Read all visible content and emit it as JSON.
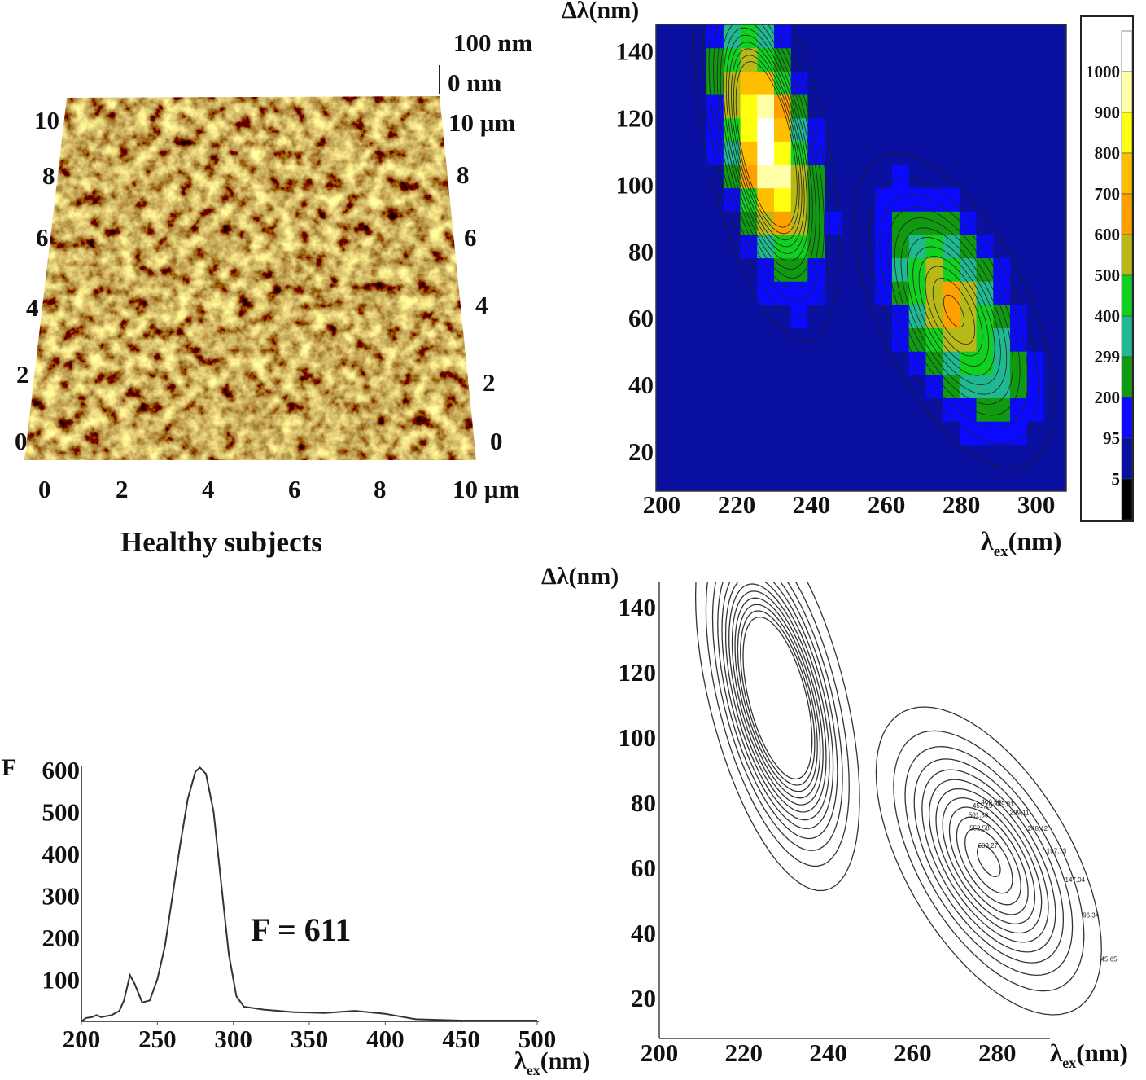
{
  "afm": {
    "caption": "Healthy subjects",
    "z_top": "100 nm",
    "z_bottom": "0 nm",
    "y_ticks": [
      "0",
      "2",
      "4",
      "6",
      "8",
      "10"
    ],
    "y_unit_label": "10 µm",
    "x_ticks": [
      "0",
      "2",
      "4",
      "6",
      "8"
    ],
    "x_last_label": "10 µm",
    "colors": {
      "dark": "#6b3a0a",
      "light": "#c8a030"
    }
  },
  "chart_data": [
    {
      "type": "heatmap",
      "ylabel": "Δλ(nm)",
      "xlabel_main": "λ",
      "xlabel_sub": "ex",
      "xlabel_unit": "(nm)",
      "x_ticks": [
        200,
        220,
        240,
        260,
        280,
        300
      ],
      "y_ticks": [
        20,
        40,
        60,
        80,
        100,
        120,
        140
      ],
      "xlim": [
        198.5,
        308
      ],
      "ylim": [
        8,
        148
      ],
      "peaks": [
        {
          "x": 228,
          "y": 112,
          "value": 1050
        },
        {
          "x": 278,
          "y": 62,
          "value": 620
        }
      ],
      "colorbar": {
        "labels": [
          "1000",
          "900",
          "800",
          "700",
          "600",
          "500",
          "400",
          "299",
          "200",
          "95",
          "5"
        ],
        "bins": [
          {
            "from": 1000,
            "color": "#ffffff"
          },
          {
            "from": 900,
            "color": "#ffffa8"
          },
          {
            "from": 800,
            "color": "#ffff10"
          },
          {
            "from": 700,
            "color": "#ffbf00"
          },
          {
            "from": 600,
            "color": "#ffa000"
          },
          {
            "from": 500,
            "color": "#b8b818"
          },
          {
            "from": 400,
            "color": "#10d020"
          },
          {
            "from": 299,
            "color": "#20b890"
          },
          {
            "from": 200,
            "color": "#109a10"
          },
          {
            "from": 95,
            "color": "#0a0aff"
          },
          {
            "from": 5,
            "color": "#0a10a0"
          },
          {
            "from": 0,
            "color": "#000000"
          }
        ]
      }
    },
    {
      "type": "line",
      "ylabel": "F",
      "xlabel_main": "λ",
      "xlabel_sub": "ex",
      "xlabel_unit": "(nm)",
      "annotation": "F = 611",
      "x_ticks": [
        200,
        250,
        300,
        350,
        400,
        450,
        500
      ],
      "y_ticks": [
        100,
        200,
        300,
        400,
        500,
        600
      ],
      "xlim": [
        200,
        500
      ],
      "ylim": [
        0,
        600
      ],
      "series": [
        {
          "x": [
            200,
            203,
            207,
            210,
            213,
            220,
            225,
            228,
            232,
            235,
            240,
            245,
            250,
            255,
            260,
            265,
            270,
            275,
            278,
            282,
            287,
            292,
            297,
            302,
            307,
            320,
            340,
            360,
            380,
            400,
            420,
            450,
            500
          ],
          "y": [
            0,
            8,
            10,
            15,
            10,
            15,
            25,
            50,
            110,
            90,
            45,
            50,
            100,
            180,
            300,
            420,
            530,
            595,
            605,
            590,
            500,
            330,
            160,
            60,
            35,
            28,
            22,
            20,
            25,
            18,
            5,
            2,
            2
          ]
        }
      ]
    },
    {
      "type": "contour",
      "ylabel": "Δλ(nm)",
      "xlabel_main": "λ",
      "xlabel_sub": "ex",
      "xlabel_unit": "(nm)",
      "x_ticks": [
        200,
        220,
        240,
        260,
        280
      ],
      "y_ticks": [
        20,
        40,
        60,
        80,
        100,
        120,
        140
      ],
      "xlim": [
        200,
        292
      ],
      "ylim": [
        7,
        147
      ],
      "levels": [
        "45,65",
        "96,34",
        "147,04",
        "197,73",
        "248,42",
        "299,11",
        "349,81",
        "400,50",
        "451,19",
        "501,88",
        "552,58",
        "603,27"
      ]
    }
  ]
}
